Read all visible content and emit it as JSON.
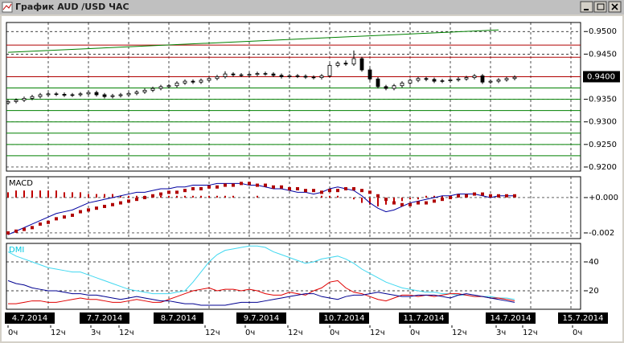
{
  "window": {
    "title": "График AUD /USD  ЧАС"
  },
  "time_axis": {
    "xlim": [
      -0.2,
      71.2
    ],
    "x": [
      0,
      1,
      2,
      3,
      4,
      5,
      6,
      7,
      8,
      9,
      10,
      11,
      12,
      13,
      14,
      15,
      16,
      17,
      18,
      19,
      20,
      21,
      22,
      23,
      24,
      25,
      26,
      27,
      28,
      29,
      30,
      31,
      32,
      33,
      34,
      35,
      36,
      37,
      38,
      39,
      40,
      41,
      42,
      43,
      44,
      45,
      46,
      47,
      48,
      49,
      50,
      51,
      52,
      53,
      54,
      55,
      56,
      57,
      58,
      59,
      60,
      61,
      62,
      63
    ],
    "grid": [
      5,
      10,
      15,
      20,
      25,
      30,
      35,
      40,
      45,
      50,
      55,
      60,
      65,
      70
    ],
    "dates": [
      {
        "value": 2.7,
        "label": "4.7.2014"
      },
      {
        "value": 12,
        "label": "7.7.2014"
      },
      {
        "value": 21.2,
        "label": "8.7.2014"
      },
      {
        "value": 31.5,
        "label": "9.7.2014"
      },
      {
        "value": 41.8,
        "label": "10.7.2014"
      },
      {
        "value": 51.7,
        "label": "11.7.2014"
      },
      {
        "value": 62.5,
        "label": "14.7.2014"
      },
      {
        "value": 71.5,
        "label": "15.7.2014"
      }
    ],
    "hours": [
      {
        "value": 0,
        "label": "0ч"
      },
      {
        "value": 5.3,
        "label": "12ч"
      },
      {
        "value": 10.3,
        "label": "3ч"
      },
      {
        "value": 13.8,
        "label": "12ч"
      },
      {
        "value": 24.5,
        "label": "12ч"
      },
      {
        "value": 29.5,
        "label": "0ч"
      },
      {
        "value": 34.8,
        "label": "12ч"
      },
      {
        "value": 40,
        "label": "0ч"
      },
      {
        "value": 45,
        "label": "12ч"
      },
      {
        "value": 50,
        "label": "0ч"
      },
      {
        "value": 55.2,
        "label": "12ч"
      },
      {
        "value": 60.7,
        "label": "3ч"
      },
      {
        "value": 64,
        "label": "12ч"
      },
      {
        "value": 70.2,
        "label": "0ч"
      }
    ]
  },
  "chart_data": [
    {
      "type": "candlestick",
      "color": "#000000",
      "grid": true,
      "ylim": [
        0.9191,
        0.952
      ],
      "yticks": [
        {
          "value": 0.95,
          "label": "0.9500"
        },
        {
          "value": 0.945,
          "label": "0.9450"
        },
        {
          "value": 0.935,
          "label": "0.9350"
        },
        {
          "value": 0.93,
          "label": "0.9300"
        },
        {
          "value": 0.925,
          "label": "0.9250"
        },
        {
          "value": 0.92,
          "label": "0.9200"
        }
      ],
      "last_price": {
        "value": 0.94,
        "label": "0.9400"
      },
      "levels": [
        {
          "value": 0.947,
          "color": "#b00000"
        },
        {
          "value": 0.9443,
          "color": "#b00000"
        },
        {
          "value": 0.94,
          "color": "#b00000"
        },
        {
          "value": 0.9375,
          "color": "#008000"
        },
        {
          "value": 0.935,
          "color": "#008000"
        },
        {
          "value": 0.9325,
          "color": "#008000"
        },
        {
          "value": 0.93,
          "color": "#008000"
        },
        {
          "value": 0.9275,
          "color": "#008000"
        },
        {
          "value": 0.925,
          "color": "#008000"
        },
        {
          "value": 0.9225,
          "color": "#008000"
        }
      ],
      "trendline": {
        "x": [
          0,
          61
        ],
        "values": [
          0.9454,
          0.95035
        ],
        "color": "#008000"
      },
      "open": [
        0.9342,
        0.9345,
        0.9348,
        0.9352,
        0.9356,
        0.936,
        0.9362,
        0.9361,
        0.9359,
        0.936,
        0.9362,
        0.9365,
        0.936,
        0.9356,
        0.9358,
        0.936,
        0.9363,
        0.9366,
        0.937,
        0.9374,
        0.9378,
        0.938,
        0.9386,
        0.939,
        0.9388,
        0.9392,
        0.9396,
        0.94,
        0.9406,
        0.9404,
        0.9403,
        0.9405,
        0.9407,
        0.9406,
        0.9403,
        0.94,
        0.9402,
        0.9401,
        0.9399,
        0.9398,
        0.9402,
        0.9425,
        0.943,
        0.9428,
        0.944,
        0.9415,
        0.9395,
        0.9378,
        0.9374,
        0.938,
        0.9386,
        0.9392,
        0.9396,
        0.9394,
        0.939,
        0.9391,
        0.9393,
        0.9395,
        0.9398,
        0.9402,
        0.9388,
        0.939,
        0.9393,
        0.9396
      ],
      "high": [
        0.9349,
        0.9352,
        0.9356,
        0.936,
        0.9364,
        0.9366,
        0.9366,
        0.9365,
        0.9364,
        0.9366,
        0.9369,
        0.9369,
        0.9364,
        0.9362,
        0.9364,
        0.9367,
        0.937,
        0.9374,
        0.9378,
        0.9382,
        0.9384,
        0.939,
        0.9394,
        0.9394,
        0.9396,
        0.94,
        0.9404,
        0.9412,
        0.941,
        0.9408,
        0.9409,
        0.9411,
        0.9411,
        0.941,
        0.9407,
        0.9406,
        0.9406,
        0.9405,
        0.9403,
        0.9406,
        0.9429,
        0.9434,
        0.9436,
        0.9458,
        0.9444,
        0.9419,
        0.9399,
        0.9382,
        0.9384,
        0.939,
        0.9396,
        0.94,
        0.94,
        0.9398,
        0.9395,
        0.9397,
        0.9399,
        0.9402,
        0.9406,
        0.9406,
        0.9394,
        0.9397,
        0.94,
        0.9403
      ],
      "low": [
        0.9338,
        0.9341,
        0.9344,
        0.9348,
        0.9352,
        0.9356,
        0.9357,
        0.9355,
        0.9355,
        0.9356,
        0.9358,
        0.9356,
        0.9352,
        0.9352,
        0.9354,
        0.9356,
        0.9359,
        0.9362,
        0.9366,
        0.937,
        0.9374,
        0.9376,
        0.9382,
        0.9384,
        0.9384,
        0.9388,
        0.9392,
        0.9396,
        0.94,
        0.9399,
        0.9399,
        0.9401,
        0.9402,
        0.9399,
        0.9396,
        0.9396,
        0.9397,
        0.9395,
        0.9394,
        0.9394,
        0.9398,
        0.9421,
        0.9424,
        0.9424,
        0.9411,
        0.9391,
        0.9374,
        0.937,
        0.937,
        0.9376,
        0.9382,
        0.9388,
        0.939,
        0.9386,
        0.9386,
        0.9387,
        0.9389,
        0.9391,
        0.9394,
        0.9384,
        0.9384,
        0.9386,
        0.9389,
        0.9392
      ],
      "close": [
        0.9345,
        0.9348,
        0.9352,
        0.9356,
        0.936,
        0.9362,
        0.9361,
        0.9359,
        0.936,
        0.9362,
        0.9365,
        0.936,
        0.9356,
        0.9358,
        0.936,
        0.9363,
        0.9366,
        0.937,
        0.9374,
        0.9378,
        0.938,
        0.9386,
        0.939,
        0.9388,
        0.9392,
        0.9396,
        0.94,
        0.9406,
        0.9404,
        0.9403,
        0.9405,
        0.9407,
        0.9406,
        0.9403,
        0.94,
        0.9402,
        0.9401,
        0.9399,
        0.9398,
        0.9402,
        0.9425,
        0.943,
        0.9428,
        0.944,
        0.9415,
        0.9395,
        0.9378,
        0.9374,
        0.938,
        0.9386,
        0.9392,
        0.9396,
        0.9394,
        0.939,
        0.9391,
        0.9393,
        0.9395,
        0.9398,
        0.9402,
        0.9388,
        0.939,
        0.9393,
        0.9396,
        0.9399
      ]
    },
    {
      "type": "combo",
      "title": "MACD",
      "grid": true,
      "ylim": [
        -0.00232,
        0.00118
      ],
      "yticks": [
        {
          "value": 0,
          "label": "+0.000"
        },
        {
          "value": -0.002,
          "label": "-0.002"
        }
      ],
      "series": [
        {
          "type": "bar",
          "color": "#c00000",
          "values": [
            0.0003,
            0.0004,
            0.0004,
            0.0004,
            0.0004,
            0.0004,
            0.0004,
            0.0003,
            0.0003,
            0.0003,
            0.0002,
            0.0002,
            0.0002,
            0.0002,
            0.0001,
            0.0001,
            0.0001,
            0.0001,
            0.0001,
            0.0001,
            0.0001,
            0.0001,
            0.0001,
            0.0001,
            0.0001,
            0.0001,
            0.0001,
            0.0001,
            0.0001,
            0,
            0,
            0.0001,
            0,
            0,
            0,
            0,
            0,
            0,
            0,
            0.0001,
            0.0001,
            0.0001,
            0,
            -0.0001,
            -0.0003,
            -0.0004,
            -0.0005,
            -0.0004,
            -0.0003,
            -0.0002,
            -0.0001,
            -0.0001,
            0.0001,
            0.0001,
            0.0001,
            0.0001,
            0.0001,
            0.0001,
            0,
            0,
            0,
            0,
            0,
            0
          ]
        },
        {
          "type": "line",
          "color": "#0000a0",
          "values": [
            -0.0021,
            -0.0019,
            -0.0017,
            -0.0015,
            -0.0013,
            -0.0011,
            -0.0009,
            -0.0008,
            -0.0007,
            -0.0005,
            -0.0003,
            -0.0002,
            -0.0001,
            0,
            0.0001,
            0.0002,
            0.0003,
            0.0003,
            0.0004,
            0.0005,
            0.0005,
            0.0006,
            0.0006,
            0.0007,
            0.0007,
            0.0007,
            0.0008,
            0.0008,
            0.0008,
            0.0008,
            0.0007,
            0.0007,
            0.0006,
            0.0005,
            0.0005,
            0.0004,
            0.0003,
            0.0003,
            0.0002,
            0.0003,
            0.0005,
            0.0006,
            0.0005,
            0.0004,
            0.0001,
            -0.0003,
            -0.0006,
            -0.0008,
            -0.0007,
            -0.0005,
            -0.0003,
            -0.0002,
            -0.0001,
            0,
            0.0001,
            0.0001,
            0.0002,
            0.0002,
            0.0002,
            0.0001,
            0,
            0.0001,
            0.0001,
            0.0001
          ]
        },
        {
          "type": "dots",
          "color": "#b00000",
          "values": [
            -0.002,
            -0.0019,
            -0.0018,
            -0.0017,
            -0.0015,
            -0.0014,
            -0.0012,
            -0.0011,
            -0.001,
            -0.0008,
            -0.0007,
            -0.0006,
            -0.0005,
            -0.0004,
            -0.0003,
            -0.0002,
            -0.0001,
            0,
            0.0001,
            0.0002,
            0.0003,
            0.0003,
            0.0004,
            0.0005,
            0.0005,
            0.0006,
            0.0006,
            0.0007,
            0.0007,
            0.0008,
            0.0008,
            0.0007,
            0.0007,
            0.0006,
            0.0006,
            0.0005,
            0.0005,
            0.0004,
            0.0004,
            0.0003,
            0.0004,
            0.0004,
            0.0005,
            0.0005,
            0.0004,
            0.0003,
            0.0001,
            -0.0001,
            -0.0003,
            -0.0004,
            -0.0004,
            -0.0003,
            -0.0003,
            -0.0002,
            -0.0001,
            0,
            0.0001,
            0.0001,
            0.0002,
            0.0002,
            0.0001,
            0.0001,
            0.0001,
            0.0001
          ]
        }
      ]
    },
    {
      "type": "line",
      "title": "DMI",
      "title_color": "#00c8e0",
      "grid": true,
      "ylim": [
        7.2,
        52.8
      ],
      "yticks": [
        40,
        20
      ],
      "series": [
        {
          "type": "line",
          "color": "#40d8f0",
          "values": [
            47,
            44,
            42,
            40,
            38,
            36,
            35,
            34,
            33,
            33,
            31,
            29,
            27,
            25,
            23,
            21,
            20,
            19,
            18,
            18,
            18,
            19,
            20,
            26,
            33,
            40,
            45,
            48,
            49,
            50,
            51,
            51,
            50,
            47,
            45,
            43,
            41,
            39,
            40,
            42,
            43,
            44,
            42,
            39,
            35,
            32,
            29,
            26,
            24,
            22,
            21,
            20,
            19,
            19,
            18,
            18,
            17,
            17,
            16,
            16,
            16,
            15,
            15,
            14
          ]
        },
        {
          "type": "line",
          "color": "#e00000",
          "values": [
            11,
            11,
            12,
            13,
            13,
            12,
            12,
            13,
            14,
            15,
            14,
            14,
            13,
            12,
            12,
            13,
            14,
            13,
            12,
            12,
            14,
            16,
            18,
            20,
            21,
            22,
            20,
            21,
            21,
            20,
            21,
            20,
            18,
            17,
            17,
            19,
            18,
            17,
            20,
            22,
            26,
            27,
            22,
            19,
            18,
            16,
            14,
            13,
            15,
            17,
            17,
            16,
            17,
            16,
            17,
            18,
            18,
            17,
            16,
            16,
            15,
            15,
            14,
            13
          ]
        },
        {
          "type": "line",
          "color": "#000090",
          "values": [
            27,
            25,
            24,
            22,
            21,
            20,
            20,
            19,
            18,
            18,
            17,
            17,
            16,
            15,
            14,
            15,
            16,
            15,
            14,
            13,
            13,
            12,
            11,
            11,
            10,
            10,
            10,
            10,
            11,
            12,
            12,
            12,
            13,
            14,
            15,
            16,
            17,
            18,
            18,
            16,
            15,
            14,
            16,
            17,
            17,
            18,
            19,
            18,
            17,
            16,
            16,
            17,
            17,
            17,
            16,
            15,
            17,
            18,
            17,
            16,
            15,
            14,
            13,
            12
          ]
        }
      ]
    }
  ]
}
